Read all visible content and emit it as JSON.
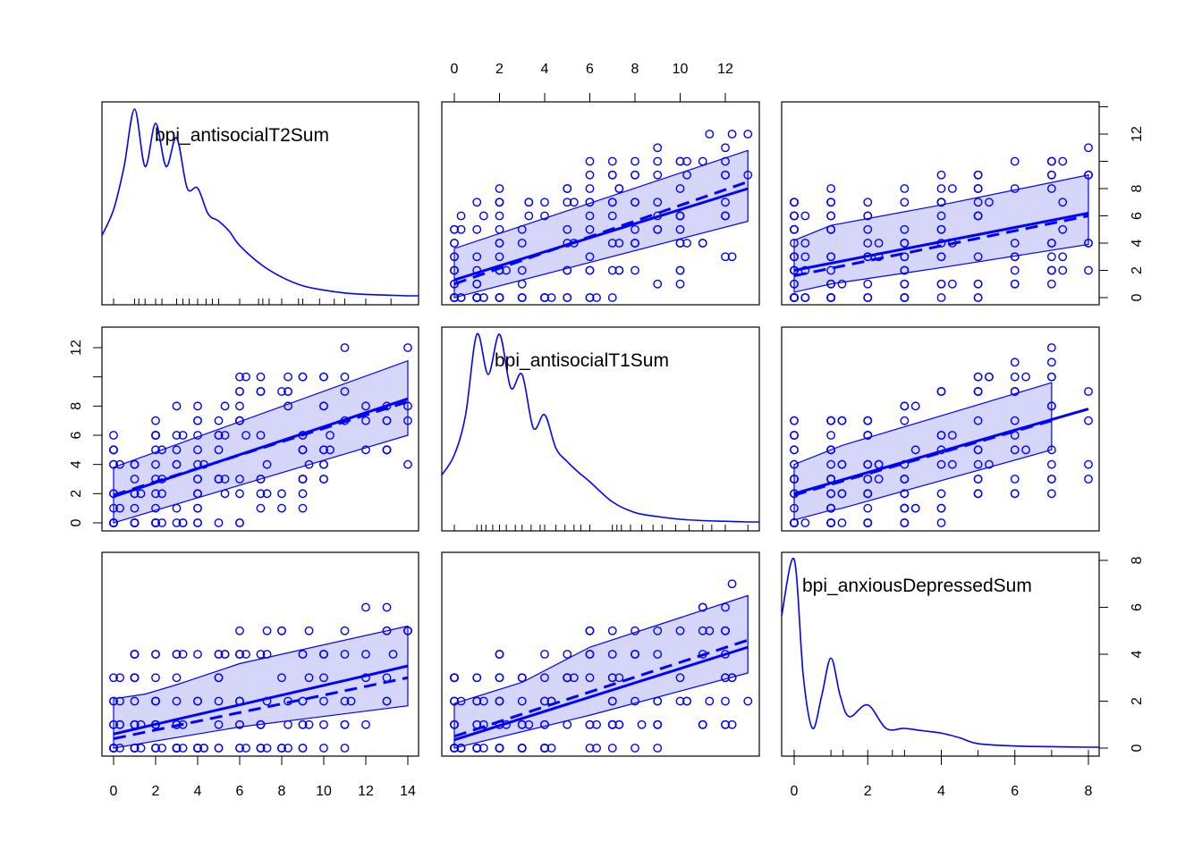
{
  "chart_data": {
    "type": "scatter",
    "title": "",
    "kind": "scatterplot matrix",
    "colors": {
      "points": "#0000ff",
      "band_fill": "#d6d6fb",
      "axis": "#000000"
    },
    "variables": [
      {
        "name": "bpi_antisocialT2Sum",
        "range": [
          0,
          14
        ],
        "ticks": [
          0,
          2,
          4,
          6,
          8,
          10,
          12,
          14
        ],
        "tick_labels": [
          "0",
          "2",
          "4",
          "6",
          "8",
          "10",
          "12",
          "14"
        ],
        "right_ticks": [
          0,
          2,
          4,
          6,
          8,
          10,
          12,
          14
        ],
        "right_tick_labels": [
          "0",
          "2",
          "4",
          "6",
          "8",
          "",
          "12",
          ""
        ]
      },
      {
        "name": "bpi_antisocialT1Sum",
        "range": [
          0,
          13
        ],
        "ticks": [
          0,
          2,
          4,
          6,
          8,
          10,
          12
        ],
        "tick_labels": [
          "0",
          "2",
          "4",
          "6",
          "8",
          "10",
          "12"
        ],
        "left_ticks": [
          0,
          2,
          4,
          6,
          8,
          10,
          12
        ],
        "left_tick_labels": [
          "0",
          "2",
          "4",
          "6",
          "8",
          "",
          "12"
        ]
      },
      {
        "name": "bpi_anxiousDepressedSum",
        "range": [
          0,
          8
        ],
        "ticks": [
          0,
          2,
          4,
          6,
          8
        ],
        "tick_labels": [
          "0",
          "2",
          "4",
          "6",
          "8"
        ]
      }
    ],
    "densities": [
      {
        "variable": "bpi_antisocialT2Sum",
        "x": [
          0,
          0.5,
          1,
          1.5,
          2,
          2.5,
          3,
          3.5,
          4,
          4.5,
          5,
          5.5,
          6,
          7,
          8,
          9,
          10,
          11,
          12,
          14
        ],
        "density": [
          0.06,
          0.09,
          0.13,
          0.09,
          0.12,
          0.09,
          0.11,
          0.075,
          0.075,
          0.057,
          0.052,
          0.045,
          0.035,
          0.022,
          0.013,
          0.007,
          0.004,
          0.002,
          0.001,
          0.0
        ],
        "rug": [
          0,
          1,
          1.2,
          1.5,
          2,
          2.3,
          3,
          3.3,
          3.6,
          4,
          4.4,
          4.7,
          5,
          6,
          6.9,
          7.1,
          7.4,
          8,
          8.8,
          9,
          9.8,
          10.5,
          11,
          12,
          13.2
        ]
      },
      {
        "variable": "bpi_antisocialT1Sum",
        "x": [
          0,
          0.5,
          1,
          1.5,
          2,
          2.5,
          3,
          3.5,
          4,
          4.5,
          5,
          5.5,
          6,
          7,
          8,
          9,
          10,
          11,
          12,
          13
        ],
        "density": [
          0.05,
          0.08,
          0.14,
          0.11,
          0.14,
          0.1,
          0.11,
          0.07,
          0.08,
          0.055,
          0.045,
          0.037,
          0.03,
          0.015,
          0.007,
          0.004,
          0.002,
          0.001,
          0.0005,
          0.0
        ],
        "rug": [
          0,
          1,
          1.2,
          1.4,
          1.7,
          2,
          2.3,
          2.7,
          3,
          3.4,
          3.8,
          4,
          4.5,
          4.9,
          5.3,
          5.6,
          6,
          7,
          7.2,
          7.4,
          7.8,
          8.3,
          8.8,
          9.2,
          9.8,
          10.4,
          11,
          11.4,
          12,
          13
        ]
      },
      {
        "variable": "bpi_anxiousDepressedSum",
        "x": [
          0,
          0.25,
          0.5,
          0.75,
          1,
          1.25,
          1.5,
          2,
          2.5,
          3,
          3.5,
          4,
          4.5,
          5,
          6,
          7,
          8
        ],
        "density": [
          0.8,
          0.3,
          0.08,
          0.22,
          0.38,
          0.22,
          0.13,
          0.18,
          0.08,
          0.08,
          0.07,
          0.06,
          0.04,
          0.015,
          0.005,
          0.002,
          0.0
        ],
        "rug": [
          0,
          1,
          1.33,
          2,
          2.67,
          3,
          4,
          5,
          6,
          7,
          8
        ]
      }
    ],
    "scatter_panels": [
      {
        "x_var": "bpi_antisocialT1Sum",
        "y_var": "bpi_antisocialT2Sum",
        "fit_solid": [
          [
            0,
            1.3
          ],
          [
            13,
            8.0
          ]
        ],
        "fit_dashed": [
          [
            0,
            1.0
          ],
          [
            13,
            8.5
          ]
        ],
        "band_upper": [
          [
            0,
            3.6
          ],
          [
            13,
            10.8
          ]
        ],
        "band_lower": [
          [
            0,
            0.0
          ],
          [
            13,
            5.6
          ]
        ]
      },
      {
        "x_var": "bpi_anxiousDepressedSum",
        "y_var": "bpi_antisocialT2Sum",
        "fit_solid": [
          [
            0,
            2.0
          ],
          [
            8,
            6.2
          ]
        ],
        "fit_dashed": [
          [
            0,
            1.6
          ],
          [
            8,
            6.0
          ]
        ],
        "band_upper": [
          [
            0,
            4.2
          ],
          [
            1,
            5.3
          ],
          [
            4,
            6.8
          ],
          [
            8,
            9.0
          ]
        ],
        "band_lower": [
          [
            0,
            0.4
          ],
          [
            1,
            1.0
          ],
          [
            4,
            2.2
          ],
          [
            8,
            3.9
          ]
        ]
      },
      {
        "x_var": "bpi_antisocialT2Sum",
        "y_var": "bpi_antisocialT1Sum",
        "fit_solid": [
          [
            0,
            1.8
          ],
          [
            14,
            8.5
          ]
        ],
        "fit_dashed": [
          [
            0,
            1.9
          ],
          [
            14,
            8.3
          ]
        ],
        "band_upper": [
          [
            0,
            3.8
          ],
          [
            14,
            11.1
          ]
        ],
        "band_lower": [
          [
            0,
            0.0
          ],
          [
            14,
            6.0
          ]
        ]
      },
      {
        "x_var": "bpi_anxiousDepressedSum",
        "y_var": "bpi_antisocialT1Sum",
        "fit_solid": [
          [
            0,
            2.0
          ],
          [
            8,
            7.8
          ]
        ],
        "fit_dashed": [
          [
            0,
            1.9
          ],
          [
            7,
            7.0
          ]
        ],
        "band_upper": [
          [
            0,
            4.0
          ],
          [
            0.9,
            4.9
          ],
          [
            1.3,
            5.3
          ],
          [
            7,
            9.6
          ]
        ],
        "band_lower": [
          [
            0,
            0.2
          ],
          [
            0.9,
            0.8
          ],
          [
            1.3,
            1.0
          ],
          [
            7,
            5.0
          ]
        ]
      },
      {
        "x_var": "bpi_antisocialT2Sum",
        "y_var": "bpi_anxiousDepressedSum",
        "fit_solid": [
          [
            0,
            0.6
          ],
          [
            14,
            3.5
          ]
        ],
        "fit_dashed": [
          [
            0,
            0.4
          ],
          [
            14,
            3.0
          ]
        ],
        "band_upper": [
          [
            0,
            2.1
          ],
          [
            1.5,
            2.3
          ],
          [
            3,
            2.7
          ],
          [
            6,
            3.6
          ],
          [
            14,
            5.2
          ]
        ],
        "band_lower": [
          [
            0,
            0.0
          ],
          [
            6,
            0.9
          ],
          [
            14,
            1.8
          ]
        ]
      },
      {
        "x_var": "bpi_antisocialT1Sum",
        "y_var": "bpi_anxiousDepressedSum",
        "fit_solid": [
          [
            0,
            0.35
          ],
          [
            13,
            4.3
          ]
        ],
        "fit_dashed": [
          [
            0,
            0.5
          ],
          [
            13,
            4.6
          ]
        ],
        "band_upper": [
          [
            0,
            1.9
          ],
          [
            3,
            2.8
          ],
          [
            6,
            4.3
          ],
          [
            13,
            6.5
          ]
        ],
        "band_lower": [
          [
            0,
            0.0
          ],
          [
            6,
            1.4
          ],
          [
            13,
            3.2
          ]
        ]
      }
    ]
  }
}
